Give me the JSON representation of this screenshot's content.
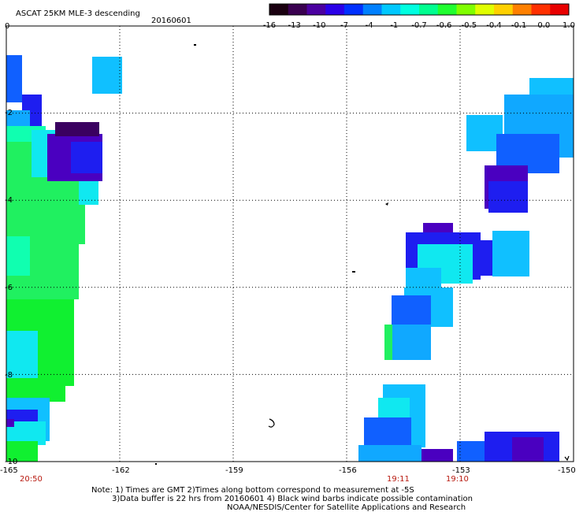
{
  "header": {
    "product": "ASCAT 25KM MLE-3 descending",
    "date": "20160601"
  },
  "colorbar": {
    "tick_labels": [
      "-16",
      "-13",
      "-10",
      "-7",
      "-4",
      "-1",
      "-0.7",
      "-0.6",
      "-0.5",
      "-0.4",
      "-0.1",
      "0.0",
      "1.0"
    ],
    "colors": [
      "#1a0010",
      "#3a0050",
      "#4b00a0",
      "#2a00e8",
      "#0030ff",
      "#0080ff",
      "#00c8ff",
      "#00ffe0",
      "#00ff90",
      "#20ff30",
      "#80ff00",
      "#e0ff00",
      "#ffd000",
      "#ff8000",
      "#ff3000",
      "#e80000"
    ]
  },
  "map": {
    "lon_labels": [
      "-165",
      "-162",
      "-159",
      "-156",
      "-153",
      "-150"
    ],
    "lat_labels": [
      "0",
      "-2",
      "-4",
      "-6",
      "-8",
      "-10"
    ],
    "lon_range": [
      -165,
      -150
    ],
    "lat_range": [
      0,
      -10
    ],
    "grid": "dotted",
    "time_labels": [
      {
        "text": "20:50",
        "lon": -164.4
      },
      {
        "text": "19:11",
        "lon": -154.8
      },
      {
        "text": "19:10",
        "lon": -153.0
      }
    ]
  },
  "footer": {
    "line1": "Note: 1) Times are GMT 2)Times along bottom correspond to measurement at -5S",
    "line2": "3)Data buffer is 22 hrs from 20160601 4) Black wind barbs indicate possible contamination",
    "line3": "NOAA/NESDIS/Center for Satellite Applications and Research"
  }
}
